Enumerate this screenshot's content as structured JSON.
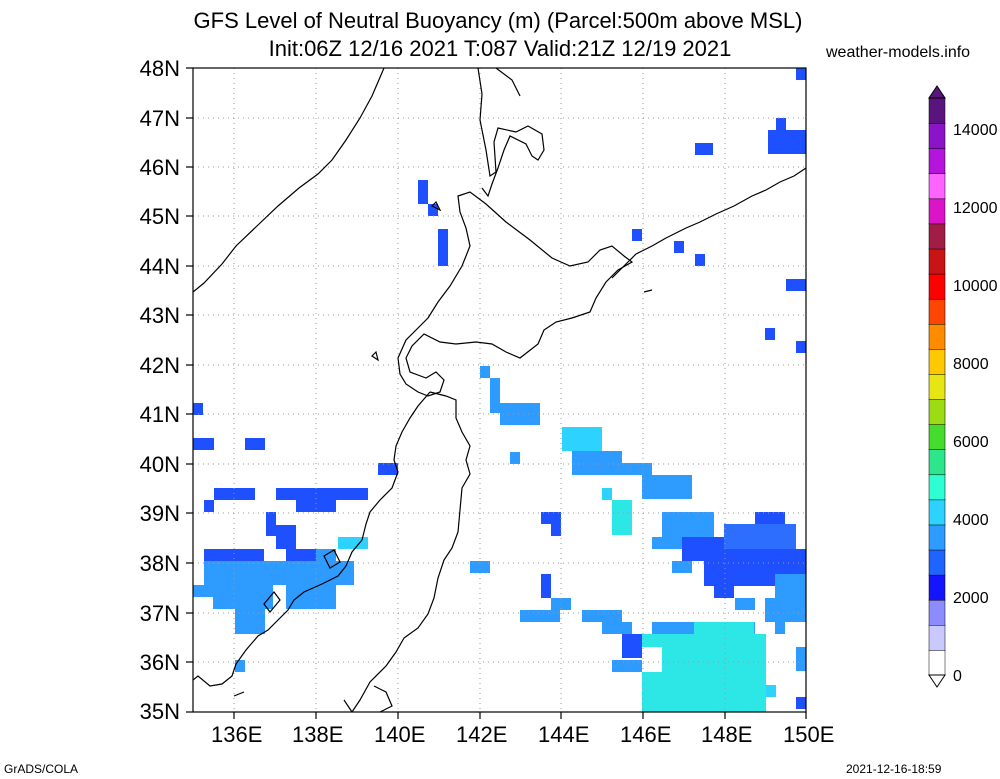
{
  "title": {
    "line1": "GFS Level of Neutral Buoyancy (m) (Parcel:500m above MSL)",
    "line2": "Init:06Z 12/16 2021 T:087 Valid:21Z 12/19 2021"
  },
  "site": "weather-models.info",
  "lat_labels": [
    "48N",
    "47N",
    "46N",
    "45N",
    "44N",
    "43N",
    "42N",
    "41N",
    "40N",
    "39N",
    "38N",
    "37N",
    "36N",
    "35N"
  ],
  "lon_labels": [
    "136E",
    "138E",
    "140E",
    "142E",
    "144E",
    "146E",
    "148E",
    "150E"
  ],
  "colorbar_labels": [
    "14000",
    "12000",
    "10000",
    "8000",
    "6000",
    "4000",
    "2000",
    "0"
  ],
  "colorbar_colors": [
    "#ffffff",
    "#c9c9ff",
    "#8c8cff",
    "#1414ff",
    "#1e64ff",
    "#2d9bff",
    "#2dd2ff",
    "#2dffd2",
    "#2de68c",
    "#46dc2d",
    "#9bdc14",
    "#e6e614",
    "#ffc800",
    "#ff8c00",
    "#ff4600",
    "#ff0000",
    "#c81414",
    "#a01e46",
    "#dc14c8",
    "#ff64ff",
    "#b414dc",
    "#8c14c8",
    "#5a147d"
  ],
  "footer": {
    "left": "GrADS/COLA",
    "right": "2021-12-16-18:59"
  },
  "colors": {
    "coast": "#000000",
    "grid": "#9a9a9a"
  }
}
